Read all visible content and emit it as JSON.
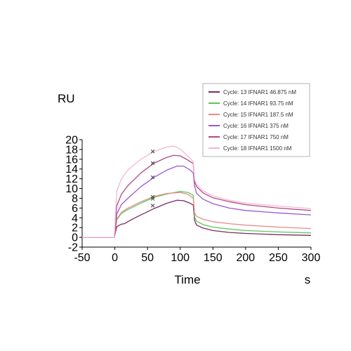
{
  "chart_data": {
    "type": "line",
    "title": "",
    "xlabel": "Time",
    "xunit": "s",
    "ylabel": "RU",
    "xlim": [
      -50,
      300
    ],
    "ylim": [
      -2,
      20
    ],
    "xticks": [
      -50,
      0,
      50,
      100,
      150,
      200,
      250,
      300
    ],
    "yticks": [
      -2,
      0,
      2,
      4,
      6,
      8,
      10,
      12,
      14,
      16,
      18,
      20
    ],
    "grid": false,
    "legend_position": "top-right",
    "series": [
      {
        "name": "Cycle: 13 IFNAR1 46.875 nM",
        "color": "#7b2d63",
        "points": [
          [
            -50,
            0.0
          ],
          [
            -1,
            0.0
          ],
          [
            0,
            0.5
          ],
          [
            3,
            2.2
          ],
          [
            10,
            2.7
          ],
          [
            15,
            2.8
          ],
          [
            25,
            3.6
          ],
          [
            40,
            4.6
          ],
          [
            60,
            5.9
          ],
          [
            80,
            7.0
          ],
          [
            95,
            7.6
          ],
          [
            105,
            7.5
          ],
          [
            115,
            7.0
          ],
          [
            120,
            6.6
          ],
          [
            122,
            3.5
          ],
          [
            125,
            2.5
          ],
          [
            135,
            1.9
          ],
          [
            150,
            1.4
          ],
          [
            175,
            1.0
          ],
          [
            200,
            0.8
          ],
          [
            250,
            0.55
          ],
          [
            300,
            0.4
          ]
        ]
      },
      {
        "name": "Cycle: 14 IFNAR1 93.75 nM",
        "color": "#5cc85c",
        "points": [
          [
            -50,
            0.0
          ],
          [
            -1,
            0.0
          ],
          [
            0,
            0.6
          ],
          [
            3,
            3.6
          ],
          [
            10,
            4.9
          ],
          [
            20,
            5.7
          ],
          [
            40,
            7.0
          ],
          [
            60,
            8.2
          ],
          [
            80,
            8.9
          ],
          [
            100,
            9.4
          ],
          [
            112,
            9.2
          ],
          [
            120,
            8.6
          ],
          [
            122,
            4.2
          ],
          [
            125,
            3.3
          ],
          [
            135,
            2.6
          ],
          [
            150,
            2.1
          ],
          [
            175,
            1.7
          ],
          [
            200,
            1.4
          ],
          [
            250,
            1.1
          ],
          [
            300,
            0.9
          ]
        ]
      },
      {
        "name": "Cycle: 15 IFNAR1 187.5 nM",
        "color": "#e88a8a",
        "points": [
          [
            -50,
            0.0
          ],
          [
            -1,
            0.0
          ],
          [
            0,
            0.7
          ],
          [
            3,
            3.8
          ],
          [
            10,
            5.1
          ],
          [
            20,
            6.0
          ],
          [
            40,
            7.3
          ],
          [
            60,
            8.4
          ],
          [
            80,
            9.0
          ],
          [
            100,
            9.2
          ],
          [
            112,
            8.8
          ],
          [
            120,
            8.0
          ],
          [
            122,
            5.0
          ],
          [
            125,
            4.3
          ],
          [
            135,
            3.7
          ],
          [
            150,
            3.2
          ],
          [
            175,
            2.8
          ],
          [
            200,
            2.5
          ],
          [
            250,
            2.1
          ],
          [
            300,
            1.8
          ]
        ]
      },
      {
        "name": "Cycle: 16 IFNAR1 375 nM",
        "color": "#9a58d6",
        "points": [
          [
            -50,
            0.0
          ],
          [
            -1,
            0.0
          ],
          [
            0,
            1.0
          ],
          [
            3,
            4.8
          ],
          [
            10,
            6.7
          ],
          [
            20,
            8.0
          ],
          [
            40,
            10.4
          ],
          [
            60,
            12.3
          ],
          [
            80,
            13.8
          ],
          [
            95,
            14.6
          ],
          [
            105,
            14.6
          ],
          [
            115,
            13.8
          ],
          [
            120,
            13.2
          ],
          [
            122,
            10.5
          ],
          [
            125,
            9.0
          ],
          [
            135,
            7.8
          ],
          [
            150,
            6.9
          ],
          [
            175,
            6.0
          ],
          [
            200,
            5.5
          ],
          [
            250,
            5.0
          ],
          [
            300,
            4.6
          ]
        ]
      },
      {
        "name": "Cycle: 17 IFNAR1 750 nM",
        "color": "#b04a82",
        "points": [
          [
            -50,
            0.0
          ],
          [
            -1,
            0.0
          ],
          [
            0,
            1.2
          ],
          [
            3,
            6.5
          ],
          [
            10,
            8.8
          ],
          [
            20,
            10.6
          ],
          [
            40,
            13.2
          ],
          [
            60,
            15.2
          ],
          [
            80,
            16.4
          ],
          [
            90,
            16.8
          ],
          [
            100,
            16.7
          ],
          [
            112,
            15.8
          ],
          [
            120,
            15.1
          ],
          [
            122,
            11.4
          ],
          [
            125,
            10.4
          ],
          [
            135,
            9.1
          ],
          [
            150,
            8.1
          ],
          [
            175,
            7.3
          ],
          [
            200,
            6.7
          ],
          [
            250,
            6.0
          ],
          [
            300,
            5.5
          ]
        ]
      },
      {
        "name": "Cycle: 18 IFNAR1 1500 nM",
        "color": "#f4b6d4",
        "points": [
          [
            -50,
            0.0
          ],
          [
            -1,
            0.0
          ],
          [
            0,
            2.0
          ],
          [
            3,
            9.5
          ],
          [
            10,
            12.0
          ],
          [
            20,
            13.8
          ],
          [
            40,
            16.0
          ],
          [
            60,
            17.6
          ],
          [
            80,
            18.5
          ],
          [
            90,
            18.7
          ],
          [
            100,
            18.1
          ],
          [
            112,
            16.6
          ],
          [
            120,
            15.5
          ],
          [
            122,
            11.8
          ],
          [
            125,
            10.8
          ],
          [
            135,
            9.5
          ],
          [
            150,
            8.5
          ],
          [
            175,
            7.6
          ],
          [
            200,
            7.0
          ],
          [
            250,
            6.4
          ],
          [
            300,
            5.9
          ]
        ]
      }
    ],
    "markers": [
      {
        "x": 58,
        "y": 17.6
      },
      {
        "x": 58,
        "y": 15.2
      },
      {
        "x": 58,
        "y": 12.3
      },
      {
        "x": 58,
        "y": 8.3
      },
      {
        "x": 58,
        "y": 7.9
      },
      {
        "x": 58,
        "y": 6.5
      }
    ]
  }
}
